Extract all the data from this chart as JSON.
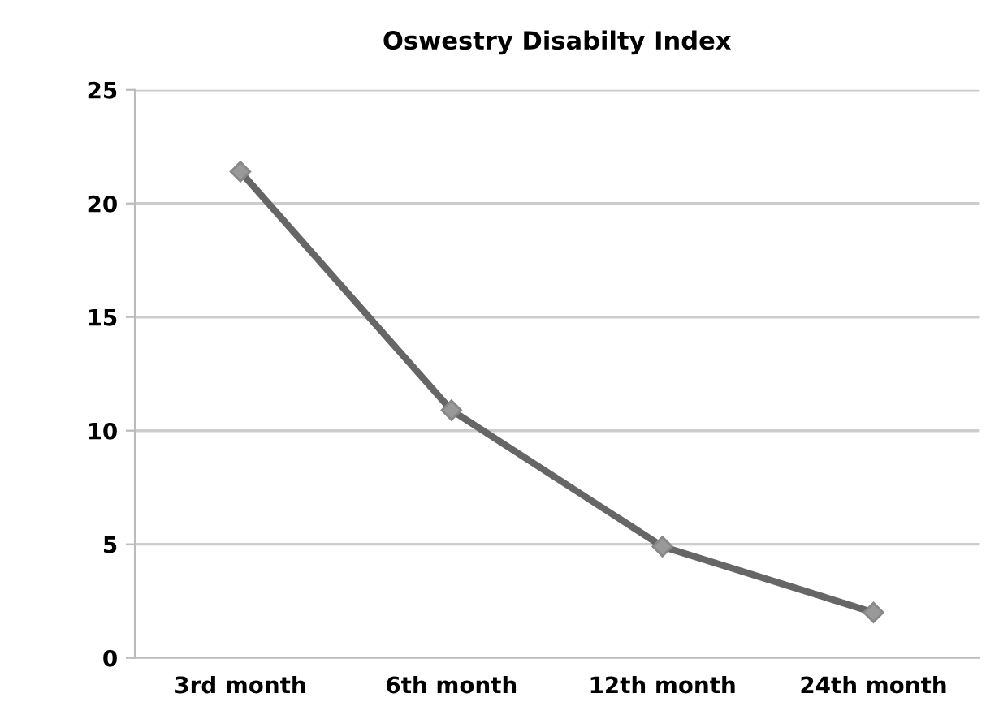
{
  "chart_data": {
    "type": "line",
    "title": "Oswestry Disabilty Index",
    "categories": [
      "3rd month",
      "6th month",
      "12th month",
      "24th month"
    ],
    "series": [
      {
        "color": "#666666",
        "values": [
          21.4,
          10.9,
          4.9,
          2.0
        ]
      }
    ],
    "ylim": [
      0,
      25
    ],
    "yticks": [
      0,
      5,
      10,
      15,
      20,
      25
    ],
    "grid": "y",
    "marker": "diamond",
    "line_style": "solid"
  }
}
